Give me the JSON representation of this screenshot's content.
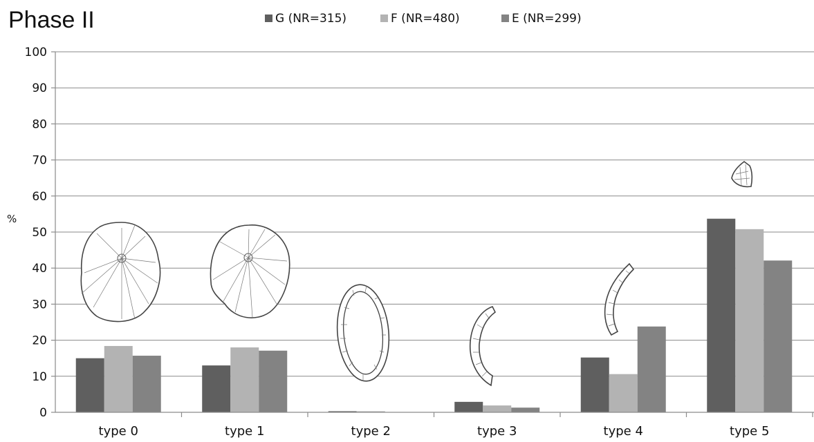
{
  "chart_data": {
    "type": "bar",
    "title": "Phase II",
    "ylabel": "%",
    "xlabel": "",
    "ylim": [
      0,
      100
    ],
    "yticks": [
      0,
      10,
      20,
      30,
      40,
      50,
      60,
      70,
      80,
      90,
      100
    ],
    "grid": true,
    "legend_position": "top-center",
    "categories": [
      "type 0",
      "type 1",
      "type 2",
      "type 3",
      "type 4",
      "type 5"
    ],
    "series": [
      {
        "name": "G (NR=315)",
        "color": "#5f5f5f",
        "values": [
          15.0,
          13.0,
          0.3,
          2.9,
          15.2,
          53.7
        ]
      },
      {
        "name": "F (NR=480)",
        "color": "#b3b3b3",
        "values": [
          18.4,
          18.0,
          0.3,
          1.9,
          10.6,
          50.8
        ]
      },
      {
        "name": "E (NR=299)",
        "color": "#838383",
        "values": [
          15.7,
          17.1,
          0.0,
          1.3,
          23.8,
          42.1
        ]
      }
    ],
    "illustrations": [
      "type-0-shell",
      "type-1-shell",
      "type-2-ring",
      "type-3-fragment",
      "type-4-fragment",
      "type-5-fragment"
    ]
  }
}
